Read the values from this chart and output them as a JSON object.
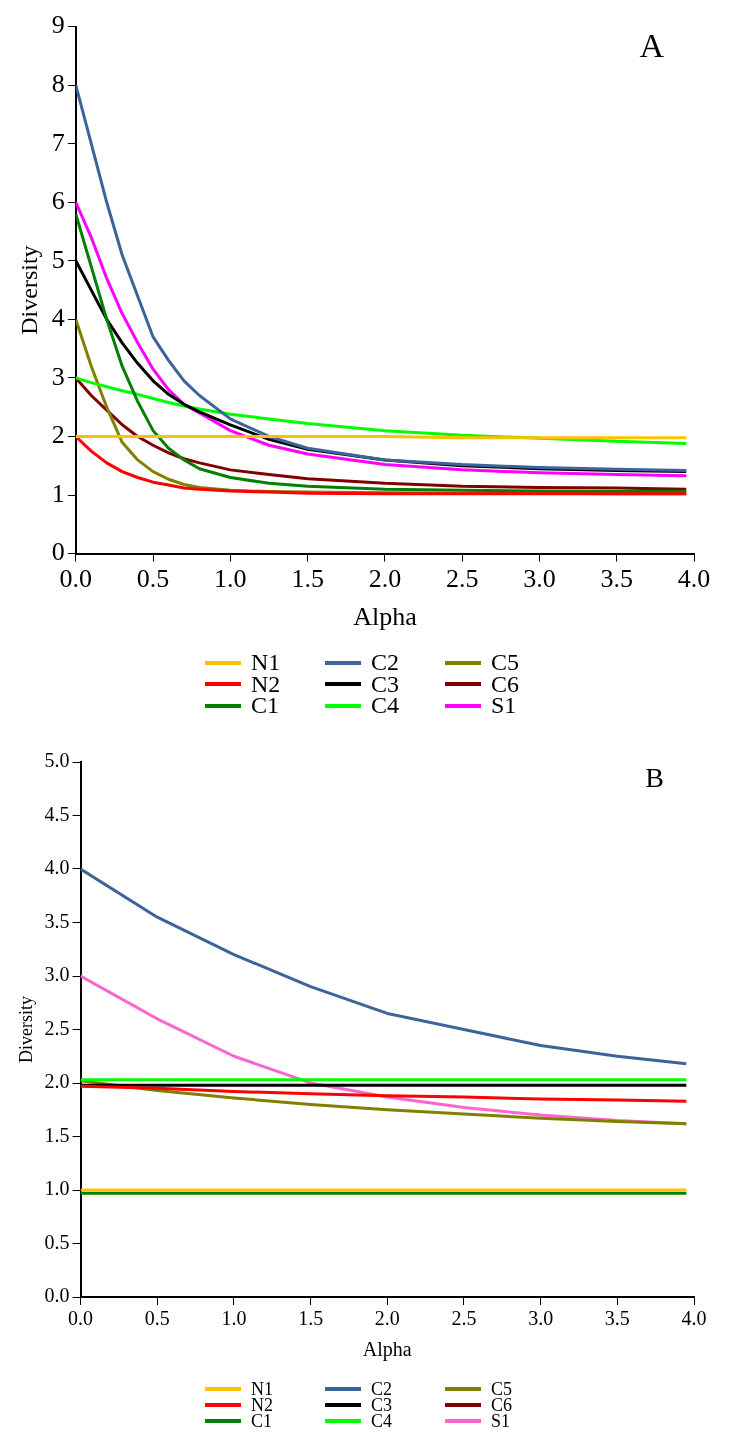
{
  "chart_data": [
    {
      "type": "line",
      "xlabel": "Alpha",
      "ylabel": "Diversity",
      "annotations": [
        "A"
      ],
      "legend": "bottom",
      "grid": false,
      "marker": "none",
      "line_style": "solid",
      "x": [
        0,
        0.1,
        0.2,
        0.3,
        0.4,
        0.5,
        0.6,
        0.7,
        0.8,
        1.0,
        1.25,
        1.5,
        2,
        2.5,
        3,
        3.5,
        3.95
      ],
      "xlim": [
        0,
        4
      ],
      "xticks": [
        {
          "value": 0,
          "label": "0.0"
        },
        {
          "value": 0.5,
          "label": "0.5"
        },
        {
          "value": 1,
          "label": "1.0"
        },
        {
          "value": 1.5,
          "label": "1.5"
        },
        {
          "value": 2,
          "label": "2.0"
        },
        {
          "value": 2.5,
          "label": "2.5"
        },
        {
          "value": 3,
          "label": "3.0"
        },
        {
          "value": 3.5,
          "label": "3.5"
        },
        {
          "value": 4,
          "label": "4.0"
        }
      ],
      "ylim": [
        0,
        9
      ],
      "yticks": [
        0,
        1,
        2,
        3,
        4,
        5,
        6,
        7,
        8,
        9
      ],
      "series": [
        {
          "name": "N1",
          "color": "#ffc000",
          "values": [
            2,
            2,
            2,
            2,
            2,
            2,
            2,
            2,
            2,
            2,
            2,
            2,
            2,
            1.98,
            1.98,
            1.98,
            1.98
          ]
        },
        {
          "name": "N2",
          "color": "#ff0000",
          "values": [
            2,
            1.75,
            1.55,
            1.4,
            1.3,
            1.22,
            1.17,
            1.12,
            1.1,
            1.07,
            1.05,
            1.03,
            1.02,
            1.02,
            1.02,
            1.02,
            1.02
          ]
        },
        {
          "name": "C1",
          "color": "#008000",
          "values": [
            5.8,
            4.9,
            4.0,
            3.2,
            2.6,
            2.1,
            1.8,
            1.6,
            1.45,
            1.3,
            1.2,
            1.15,
            1.1,
            1.08,
            1.07,
            1.06,
            1.06
          ]
        },
        {
          "name": "C2",
          "color": "#3d6499",
          "values": [
            8,
            7.0,
            6.0,
            5.1,
            4.4,
            3.7,
            3.3,
            2.95,
            2.7,
            2.3,
            2.0,
            1.8,
            1.6,
            1.52,
            1.47,
            1.44,
            1.42
          ]
        },
        {
          "name": "C3",
          "color": "#000000",
          "values": [
            5,
            4.5,
            4.0,
            3.6,
            3.25,
            2.95,
            2.72,
            2.55,
            2.42,
            2.2,
            1.95,
            1.78,
            1.6,
            1.5,
            1.45,
            1.42,
            1.4
          ]
        },
        {
          "name": "C4",
          "color": "#00ff00",
          "values": [
            3,
            2.92,
            2.85,
            2.78,
            2.72,
            2.65,
            2.58,
            2.52,
            2.47,
            2.38,
            2.3,
            2.22,
            2.1,
            2.02,
            1.97,
            1.92,
            1.88
          ]
        },
        {
          "name": "C5",
          "color": "#808000",
          "values": [
            4,
            3.2,
            2.5,
            1.9,
            1.6,
            1.4,
            1.27,
            1.18,
            1.13,
            1.08,
            1.06,
            1.05,
            1.04,
            1.03,
            1.03,
            1.02,
            1.02
          ]
        },
        {
          "name": "C6",
          "color": "#800000",
          "values": [
            3,
            2.7,
            2.45,
            2.2,
            2.0,
            1.85,
            1.72,
            1.62,
            1.55,
            1.43,
            1.35,
            1.28,
            1.2,
            1.15,
            1.13,
            1.12,
            1.1
          ]
        },
        {
          "name": "S1",
          "color": "#ff00ff",
          "values": [
            6,
            5.4,
            4.7,
            4.1,
            3.6,
            3.15,
            2.8,
            2.55,
            2.4,
            2.1,
            1.85,
            1.7,
            1.52,
            1.43,
            1.38,
            1.35,
            1.33
          ]
        }
      ]
    },
    {
      "type": "line",
      "xlabel": "Alpha",
      "ylabel": "Diversity",
      "annotations": [
        "B"
      ],
      "legend": "bottom",
      "grid": false,
      "marker": "none",
      "line_style": "solid",
      "x": [
        0,
        0.5,
        1,
        1.5,
        2,
        2.5,
        3,
        3.5,
        3.95
      ],
      "xlim": [
        0,
        4
      ],
      "xticks": [
        {
          "value": 0,
          "label": "0.0"
        },
        {
          "value": 0.5,
          "label": "0.5"
        },
        {
          "value": 1,
          "label": "1.0"
        },
        {
          "value": 1.5,
          "label": "1.5"
        },
        {
          "value": 2,
          "label": "2.0"
        },
        {
          "value": 2.5,
          "label": "2.5"
        },
        {
          "value": 3,
          "label": "3.0"
        },
        {
          "value": 3.5,
          "label": "3.5"
        },
        {
          "value": 4,
          "label": "4.0"
        }
      ],
      "ylim": [
        0,
        5
      ],
      "yticks": [
        {
          "value": 0,
          "label": "0.0"
        },
        {
          "value": 0.5,
          "label": "0.5"
        },
        {
          "value": 1,
          "label": "1.0"
        },
        {
          "value": 1.5,
          "label": "1.5"
        },
        {
          "value": 2,
          "label": "2.0"
        },
        {
          "value": 2.5,
          "label": "2.5"
        },
        {
          "value": 3,
          "label": "3.0"
        },
        {
          "value": 3.5,
          "label": "3.5"
        },
        {
          "value": 4,
          "label": "4.0"
        },
        {
          "value": 4.5,
          "label": "4.5"
        },
        {
          "value": 5,
          "label": "5.0"
        }
      ],
      "series": [
        {
          "name": "N1",
          "color": "#ffc000",
          "values": [
            1,
            1,
            1,
            1,
            1,
            1,
            1,
            1,
            1
          ]
        },
        {
          "name": "N2",
          "color": "#ff0000",
          "values": [
            1.97,
            1.95,
            1.92,
            1.9,
            1.88,
            1.87,
            1.85,
            1.84,
            1.83
          ]
        },
        {
          "name": "C1",
          "color": "#008000",
          "values": [
            0.97,
            0.97,
            0.97,
            0.97,
            0.97,
            0.97,
            0.97,
            0.97,
            0.97
          ]
        },
        {
          "name": "C2",
          "color": "#3d6499",
          "values": [
            4.0,
            3.55,
            3.2,
            2.9,
            2.65,
            2.5,
            2.35,
            2.25,
            2.18
          ]
        },
        {
          "name": "C3",
          "color": "#000000",
          "values": [
            1.98,
            1.98,
            1.98,
            1.98,
            1.98,
            1.98,
            1.98,
            1.98,
            1.98
          ]
        },
        {
          "name": "C4",
          "color": "#00ff00",
          "values": [
            2.03,
            2.03,
            2.03,
            2.03,
            2.03,
            2.03,
            2.03,
            2.03,
            2.03
          ]
        },
        {
          "name": "C5",
          "color": "#808000",
          "values": [
            2.02,
            1.93,
            1.86,
            1.8,
            1.75,
            1.71,
            1.67,
            1.64,
            1.62
          ]
        },
        {
          "name": "C6",
          "color": "#800000",
          "values": [
            null,
            null,
            null,
            null,
            null,
            null,
            null,
            null,
            null
          ]
        },
        {
          "name": "S1",
          "color": "#ff66cc",
          "values": [
            3.0,
            2.6,
            2.25,
            2.0,
            1.87,
            1.77,
            1.7,
            1.65,
            1.62
          ]
        }
      ]
    }
  ]
}
